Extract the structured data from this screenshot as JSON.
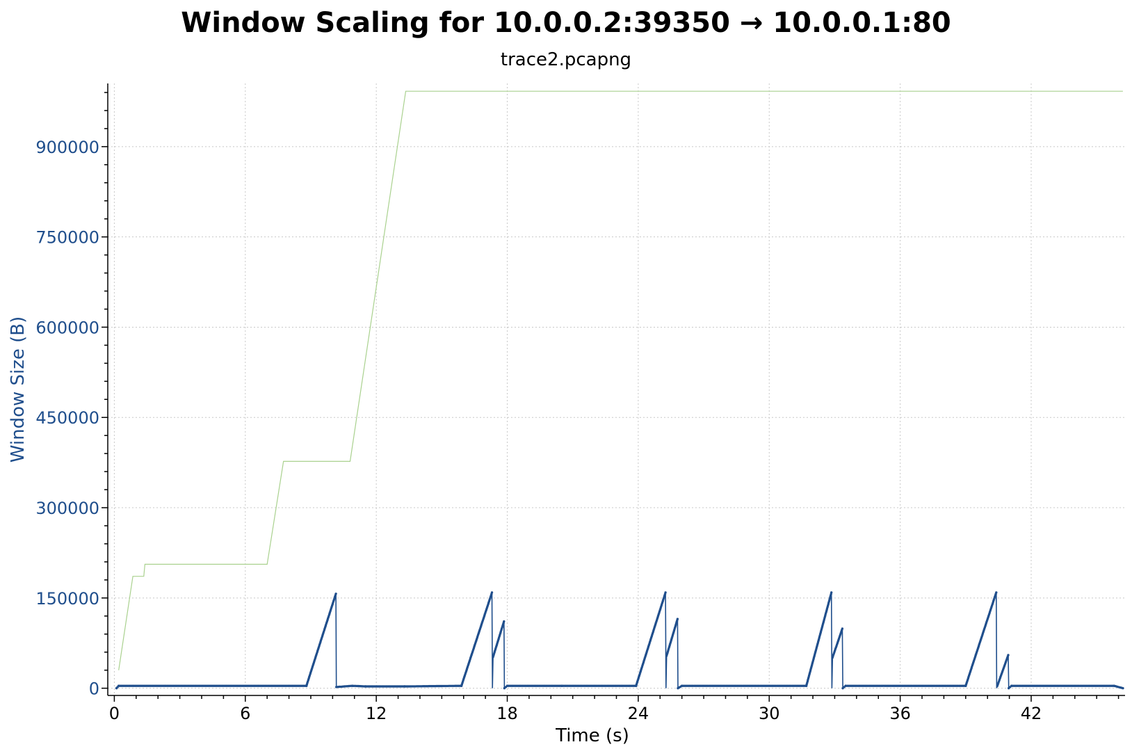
{
  "chart_data": {
    "type": "line",
    "title": "Window Scaling for 10.0.0.2:39350 → 10.0.0.1:80",
    "subtitle": "trace2.pcapng",
    "xlabel": "Time (s)",
    "ylabel": "Window Size (B)",
    "xlim": [
      -0.3,
      46.3
    ],
    "ylim": [
      -12000,
      1005000
    ],
    "x_ticks": [
      0,
      6,
      12,
      18,
      24,
      30,
      36,
      42
    ],
    "y_ticks": [
      0,
      150000,
      300000,
      450000,
      600000,
      750000,
      900000
    ],
    "y_tick_labels": [
      "0",
      "150000",
      "300000",
      "450000",
      "600000",
      "750000",
      "900000"
    ],
    "grid": true,
    "legend": "none",
    "series": [
      {
        "color": "#a9d18e",
        "style": "line",
        "x": [
          0.2,
          0.85,
          1.35,
          1.4,
          7.0,
          7.75,
          10.8,
          13.35,
          46.2
        ],
        "y": [
          30000,
          186000,
          186000,
          206000,
          206000,
          377000,
          377000,
          992000,
          992000
        ]
      },
      {
        "color": "#1f4e8c",
        "style": "line+markers",
        "x": [
          0.1,
          0.2,
          8.8,
          10.15,
          10.17,
          10.9,
          11.5,
          13.3,
          15.9,
          17.3,
          17.32,
          17.35,
          17.85,
          17.87,
          18.0,
          20.5,
          23.9,
          25.25,
          25.27,
          25.3,
          25.8,
          25.82,
          26.0,
          31.7,
          32.85,
          32.87,
          32.9,
          33.35,
          33.37,
          33.5,
          39.0,
          40.4,
          40.42,
          40.45,
          40.95,
          40.97,
          41.1,
          45.8,
          46.2
        ],
        "y": [
          0,
          4000,
          4000,
          157000,
          2000,
          4000,
          3000,
          3000,
          4000,
          159000,
          0,
          52000,
          111000,
          0,
          4000,
          4000,
          4000,
          159000,
          0,
          54000,
          115000,
          0,
          4000,
          4000,
          159000,
          0,
          51000,
          99000,
          0,
          4000,
          4000,
          159000,
          0,
          4000,
          55000,
          0,
          4000,
          4000,
          0
        ]
      }
    ]
  }
}
